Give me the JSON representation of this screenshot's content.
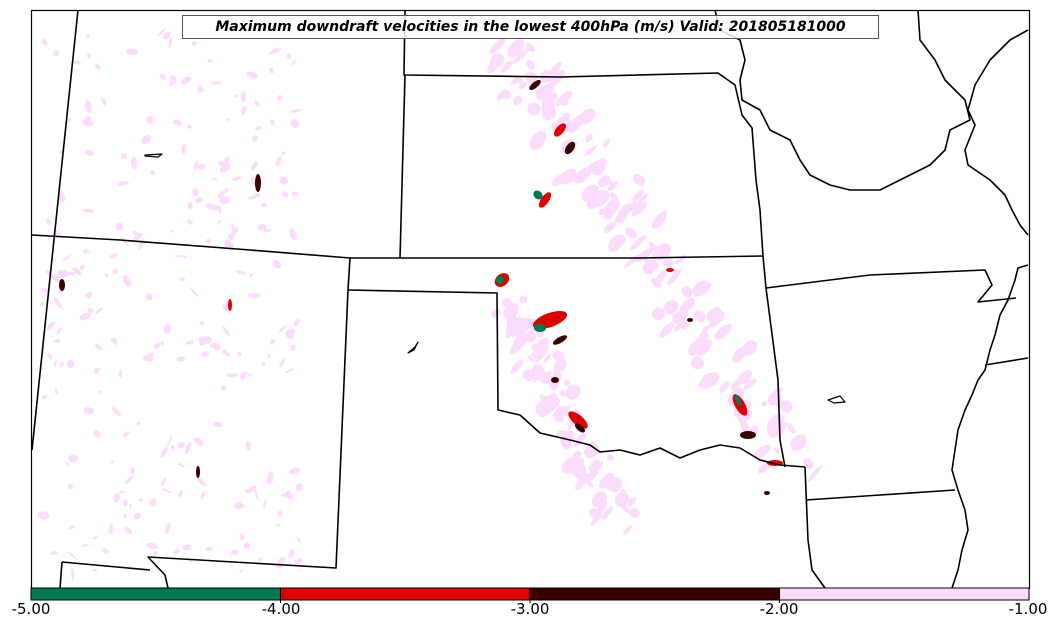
{
  "map": {
    "title": "Maximum downdraft velocities in the lowest 400hPa (m/s) Valid: 201805181000",
    "colors": {
      "border": "#000000",
      "background": "#ffffff",
      "weak_downdraft": "#fcdcfc",
      "moderate_downdraft": "#3a0000",
      "strong_downdraft": "#e00000",
      "extreme_downdraft": "#007a50"
    }
  },
  "colorbar": {
    "ticks": [
      "-5.00",
      "-4.00",
      "-3.00",
      "-2.00",
      "-1.00"
    ],
    "segments": [
      {
        "from": -5.0,
        "to": -4.0,
        "color": "#007a50"
      },
      {
        "from": -4.0,
        "to": -3.0,
        "color": "#e00000"
      },
      {
        "from": -3.0,
        "to": -2.0,
        "color": "#3a0000"
      },
      {
        "from": -2.0,
        "to": -1.0,
        "color": "#fcdcfc"
      }
    ]
  }
}
